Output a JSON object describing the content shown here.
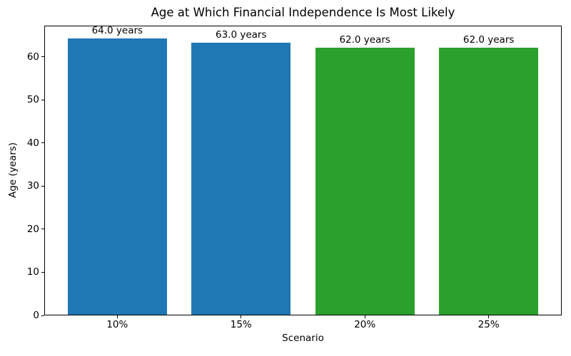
{
  "chart_data": {
    "type": "bar",
    "title": "Age at Which Financial Independence Is Most Likely",
    "xlabel": "Scenario",
    "ylabel": "Age (years)",
    "categories": [
      "10%",
      "15%",
      "20%",
      "25%"
    ],
    "values": [
      64.0,
      63.0,
      62.0,
      62.0
    ],
    "bar_labels": [
      "64.0 years",
      "63.0 years",
      "62.0 years",
      "62.0 years"
    ],
    "bar_colors": [
      "#1f77b4",
      "#1f77b4",
      "#2ca02c",
      "#2ca02c"
    ],
    "ylim": [
      0,
      67.2
    ],
    "yticks": [
      0,
      10,
      20,
      30,
      40,
      50,
      60
    ],
    "xlim": [
      -0.59,
      3.59
    ],
    "bar_width": 0.8,
    "grid": false,
    "legend_position": "none",
    "background_color": "#ffffff",
    "text_color": "#000000",
    "spine_color": "#000000"
  }
}
